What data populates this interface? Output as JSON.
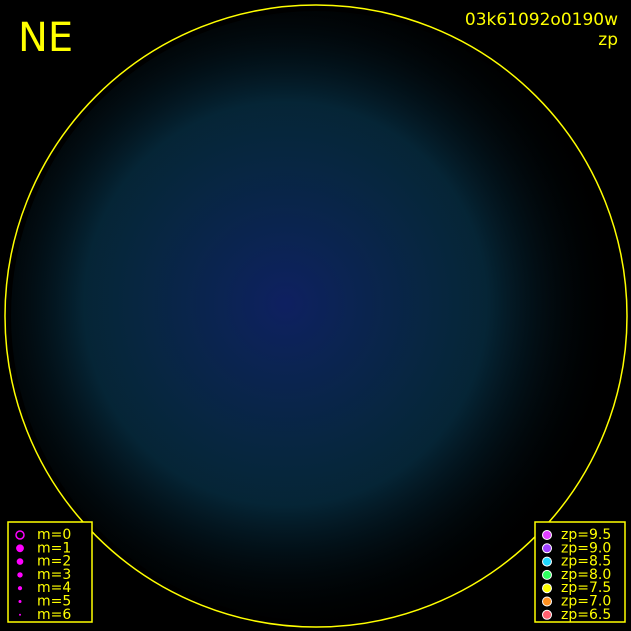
{
  "header": {
    "corner_label": "NE",
    "image_id": "03k61092o0190w",
    "mode": "zp"
  },
  "legend_magnitude": {
    "items": [
      "m=0",
      "m=1",
      "m=2",
      "m=3",
      "m=4",
      "m=5",
      "m=6"
    ],
    "color": "#ff00ff"
  },
  "legend_zp": {
    "items": [
      {
        "label": "zp=9.5",
        "color": "#e040ff"
      },
      {
        "label": "zp=9.0",
        "color": "#a040ff"
      },
      {
        "label": "zp=8.5",
        "color": "#20d8ff"
      },
      {
        "label": "zp=8.0",
        "color": "#30ff60"
      },
      {
        "label": "zp=7.5",
        "color": "#ffff00"
      },
      {
        "label": "zp=7.0",
        "color": "#ff9020"
      },
      {
        "label": "zp=6.5",
        "color": "#ff6070"
      }
    ]
  },
  "frame_color": "#ffff00"
}
